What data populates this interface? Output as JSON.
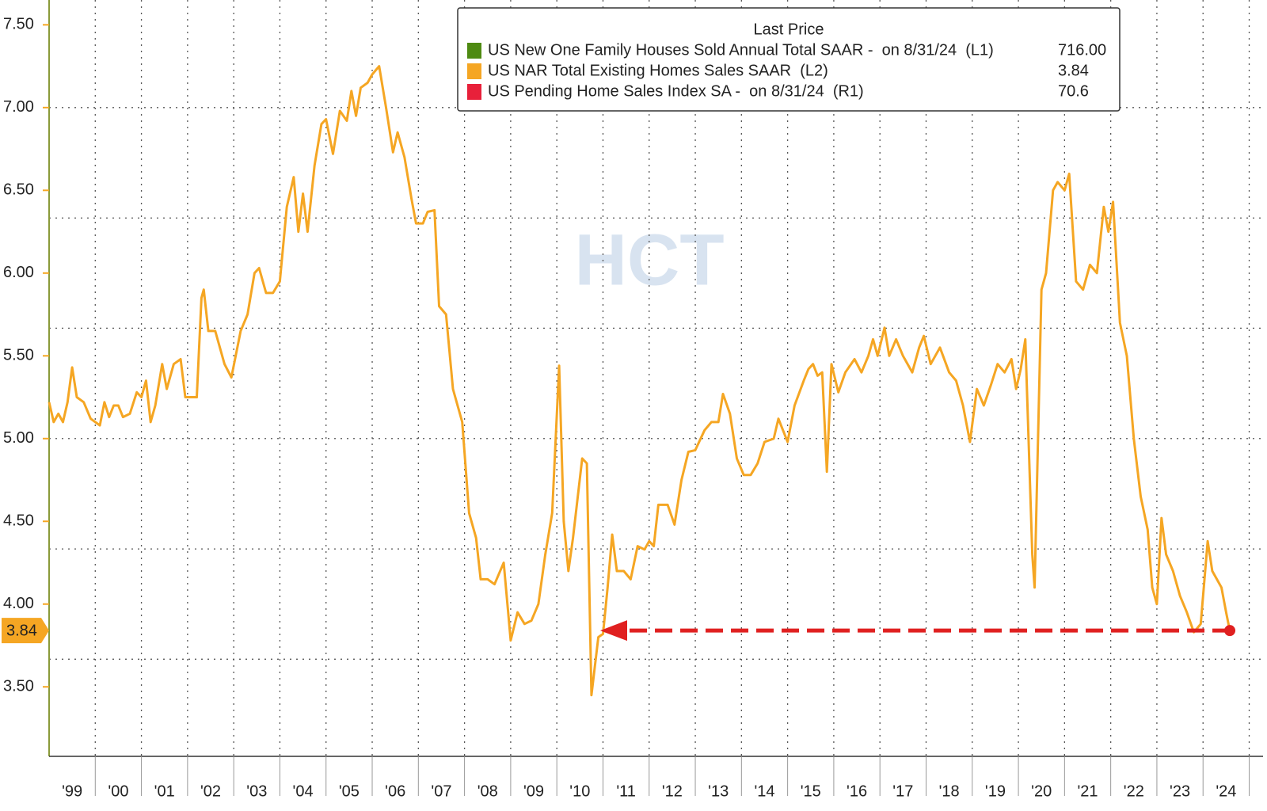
{
  "chart_data": {
    "type": "line",
    "legend_title": "Last Price",
    "watermark": "HCT",
    "series": [
      {
        "name": "US New One Family Houses Sold Annual Total SAAR -  on 8/31/24  (L1)",
        "color": "#4e8a12",
        "last_price": "716.00"
      },
      {
        "name": "US NAR Total Existing Homes Sales SAAR  (L2)",
        "color": "#f5a623",
        "last_price": "3.84",
        "x": [
          1999.0,
          1999.1,
          1999.2,
          1999.3,
          1999.4,
          1999.5,
          1999.6,
          1999.75,
          1999.9,
          2000.0,
          2000.1,
          2000.2,
          2000.3,
          2000.4,
          2000.5,
          2000.6,
          2000.75,
          2000.9,
          2001.0,
          2001.1,
          2001.2,
          2001.3,
          2001.45,
          2001.55,
          2001.7,
          2001.85,
          2001.95,
          2002.2,
          2002.3,
          2002.35,
          2002.45,
          2002.6,
          2002.8,
          2002.95,
          2003.15,
          2003.3,
          2003.45,
          2003.55,
          2003.7,
          2003.85,
          2004.0,
          2004.15,
          2004.3,
          2004.4,
          2004.5,
          2004.6,
          2004.75,
          2004.9,
          2005.0,
          2005.15,
          2005.3,
          2005.45,
          2005.55,
          2005.65,
          2005.75,
          2005.9,
          2006.0,
          2006.15,
          2006.3,
          2006.45,
          2006.55,
          2006.7,
          2006.85,
          2006.95,
          2007.1,
          2007.2,
          2007.35,
          2007.45,
          2007.6,
          2007.75,
          2007.95,
          2008.1,
          2008.25,
          2008.35,
          2008.5,
          2008.65,
          2008.85,
          2009.0,
          2009.15,
          2009.3,
          2009.45,
          2009.6,
          2009.75,
          2009.9,
          2010.05,
          2010.15,
          2010.25,
          2010.35,
          2010.55,
          2010.65,
          2010.75,
          2010.9,
          2011.0,
          2011.1,
          2011.2,
          2011.3,
          2011.45,
          2011.6,
          2011.75,
          2011.9,
          2012.0,
          2012.1,
          2012.2,
          2012.4,
          2012.55,
          2012.7,
          2012.85,
          2013.0,
          2013.2,
          2013.35,
          2013.5,
          2013.6,
          2013.75,
          2013.9,
          2014.05,
          2014.2,
          2014.35,
          2014.5,
          2014.7,
          2014.8,
          2014.9,
          2015.0,
          2015.15,
          2015.35,
          2015.45,
          2015.55,
          2015.65,
          2015.75,
          2015.85,
          2015.95,
          2016.1,
          2016.25,
          2016.45,
          2016.6,
          2016.75,
          2016.85,
          2016.95,
          2017.1,
          2017.2,
          2017.35,
          2017.5,
          2017.7,
          2017.85,
          2017.95,
          2018.1,
          2018.3,
          2018.5,
          2018.65,
          2018.8,
          2018.95,
          2019.1,
          2019.25,
          2019.4,
          2019.55,
          2019.7,
          2019.85,
          2019.95,
          2020.05,
          2020.15,
          2020.3,
          2020.35,
          2020.5,
          2020.6,
          2020.75,
          2020.85,
          2021.0,
          2021.1,
          2021.25,
          2021.4,
          2021.55,
          2021.7,
          2021.85,
          2021.95,
          2022.05,
          2022.2,
          2022.35,
          2022.5,
          2022.65,
          2022.8,
          2022.9,
          2023.0,
          2023.1,
          2023.2,
          2023.35,
          2023.5,
          2023.65,
          2023.8,
          2023.95,
          2024.1,
          2024.2,
          2024.3,
          2024.4,
          2024.5,
          2024.58
        ],
        "values": [
          5.22,
          5.1,
          5.15,
          5.1,
          5.22,
          5.43,
          5.25,
          5.22,
          5.12,
          5.1,
          5.08,
          5.22,
          5.13,
          5.2,
          5.2,
          5.13,
          5.15,
          5.28,
          5.25,
          5.35,
          5.1,
          5.2,
          5.45,
          5.3,
          5.45,
          5.48,
          5.25,
          5.25,
          5.85,
          5.9,
          5.65,
          5.65,
          5.45,
          5.37,
          5.65,
          5.75,
          6.0,
          6.03,
          5.88,
          5.88,
          5.95,
          6.4,
          6.58,
          6.25,
          6.48,
          6.25,
          6.65,
          6.9,
          6.93,
          6.72,
          6.98,
          6.92,
          7.1,
          6.95,
          7.12,
          7.15,
          7.2,
          7.25,
          7.0,
          6.73,
          6.85,
          6.7,
          6.45,
          6.3,
          6.3,
          6.37,
          6.38,
          5.8,
          5.75,
          5.3,
          5.1,
          4.55,
          4.4,
          4.15,
          4.15,
          4.12,
          4.25,
          3.78,
          3.95,
          3.88,
          3.9,
          4.0,
          4.3,
          4.55,
          5.44,
          4.5,
          4.2,
          4.4,
          4.88,
          4.85,
          3.45,
          3.8,
          3.82,
          4.1,
          4.42,
          4.2,
          4.2,
          4.15,
          4.35,
          4.33,
          4.38,
          4.35,
          4.6,
          4.6,
          4.48,
          4.75,
          4.92,
          4.93,
          5.05,
          5.1,
          5.1,
          5.27,
          5.15,
          4.88,
          4.78,
          4.78,
          4.85,
          4.98,
          5.0,
          5.12,
          5.05,
          4.98,
          5.2,
          5.35,
          5.42,
          5.45,
          5.38,
          5.4,
          4.8,
          5.45,
          5.28,
          5.4,
          5.48,
          5.4,
          5.5,
          5.6,
          5.5,
          5.67,
          5.5,
          5.6,
          5.5,
          5.4,
          5.55,
          5.62,
          5.45,
          5.55,
          5.4,
          5.35,
          5.2,
          4.98,
          5.3,
          5.2,
          5.32,
          5.45,
          5.4,
          5.48,
          5.3,
          5.42,
          5.6,
          4.3,
          4.1,
          5.9,
          6.0,
          6.5,
          6.55,
          6.5,
          6.6,
          5.95,
          5.9,
          6.05,
          6.0,
          6.4,
          6.25,
          6.43,
          5.7,
          5.5,
          5.0,
          4.65,
          4.45,
          4.1,
          4.0,
          4.52,
          4.3,
          4.2,
          4.05,
          3.95,
          3.83,
          3.88,
          4.38,
          4.2,
          4.15,
          4.1,
          3.95,
          3.84
        ]
      },
      {
        "name": "US Pending Home Sales Index SA -  on 8/31/24  (R1)",
        "color": "#e8203a",
        "last_price": "70.6"
      }
    ],
    "xlim": [
      1999.0,
      2025.3
    ],
    "xticks": [
      {
        "value": 1999.5,
        "label": "'99"
      },
      {
        "value": 2000.5,
        "label": "'00"
      },
      {
        "value": 2001.5,
        "label": "'01"
      },
      {
        "value": 2002.5,
        "label": "'02"
      },
      {
        "value": 2003.5,
        "label": "'03"
      },
      {
        "value": 2004.5,
        "label": "'04"
      },
      {
        "value": 2005.5,
        "label": "'05"
      },
      {
        "value": 2006.5,
        "label": "'06"
      },
      {
        "value": 2007.5,
        "label": "'07"
      },
      {
        "value": 2008.5,
        "label": "'08"
      },
      {
        "value": 2009.5,
        "label": "'09"
      },
      {
        "value": 2010.5,
        "label": "'10"
      },
      {
        "value": 2011.5,
        "label": "'11"
      },
      {
        "value": 2012.5,
        "label": "'12"
      },
      {
        "value": 2013.5,
        "label": "'13"
      },
      {
        "value": 2014.5,
        "label": "'14"
      },
      {
        "value": 2015.5,
        "label": "'15"
      },
      {
        "value": 2016.5,
        "label": "'16"
      },
      {
        "value": 2017.5,
        "label": "'17"
      },
      {
        "value": 2018.5,
        "label": "'18"
      },
      {
        "value": 2019.5,
        "label": "'19"
      },
      {
        "value": 2020.5,
        "label": "'20"
      },
      {
        "value": 2021.5,
        "label": "'21"
      },
      {
        "value": 2022.5,
        "label": "'22"
      },
      {
        "value": 2023.5,
        "label": "'23"
      },
      {
        "value": 2024.5,
        "label": "'24"
      }
    ],
    "xminorticks": [
      2000,
      2001,
      2002,
      2003,
      2004,
      2005,
      2006,
      2007,
      2008,
      2009,
      2010,
      2011,
      2012,
      2013,
      2014,
      2015,
      2016,
      2017,
      2018,
      2019,
      2020,
      2021,
      2022,
      2023,
      2024,
      2025
    ],
    "ylim": [
      3.08,
      7.65
    ],
    "yticks": [
      {
        "value": 3.5,
        "label": "3.50"
      },
      {
        "value": 4,
        "label": "4.00"
      },
      {
        "value": 4.5,
        "label": "4.50"
      },
      {
        "value": 5,
        "label": "5.00"
      },
      {
        "value": 5.5,
        "label": "5.50"
      },
      {
        "value": 6,
        "label": "6.00"
      },
      {
        "value": 6.5,
        "label": "6.50"
      },
      {
        "value": 7,
        "label": "7.00"
      },
      {
        "value": 7.5,
        "label": "7.50"
      }
    ],
    "ygrid": [
      3.667,
      4.333,
      5.0,
      5.667,
      6.333,
      7.0
    ],
    "grid": true
  }
}
